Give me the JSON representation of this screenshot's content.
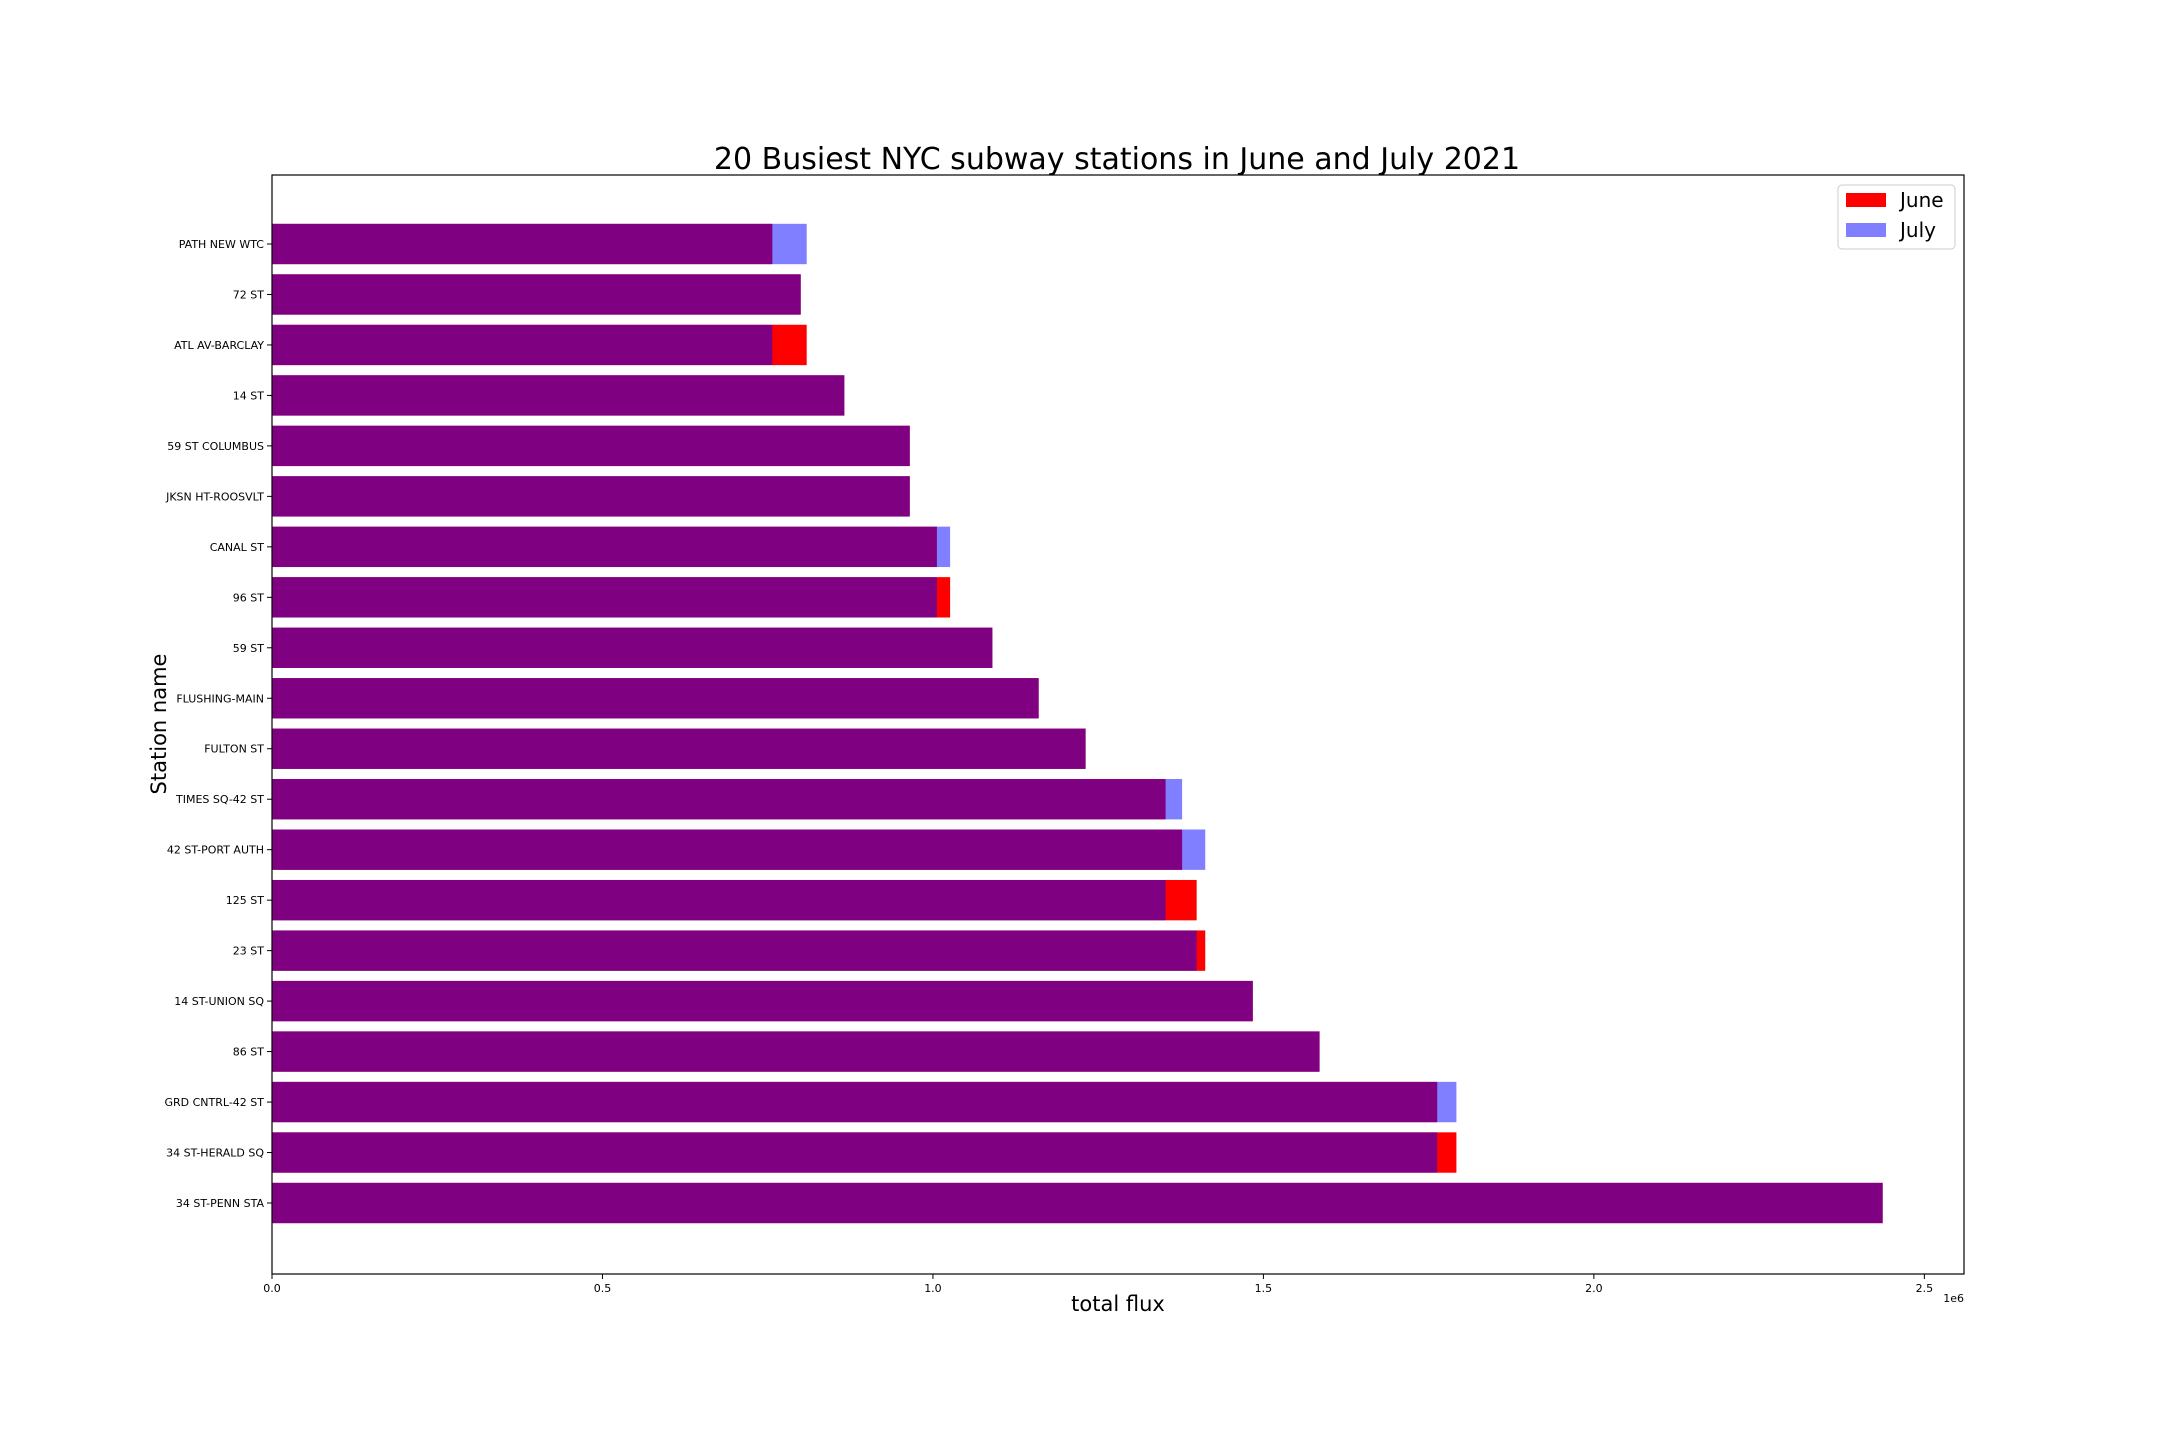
{
  "chart_data": {
    "type": "bar",
    "orientation": "horizontal",
    "title": "20 Busiest NYC subway stations in June and July 2021",
    "xlabel": "total flux",
    "ylabel": "Station name",
    "x_offset_label": "1e6",
    "xlim": [
      0,
      2.56
    ],
    "x_ticks": [
      0.0,
      0.5,
      1.0,
      1.5,
      2.0,
      2.5
    ],
    "x_tick_labels": [
      "0.0",
      "0.5",
      "1.0",
      "1.5",
      "2.0",
      "2.5"
    ],
    "grid": false,
    "legend_position": "top-right",
    "categories": [
      "PATH NEW WTC",
      "72 ST",
      "ATL AV-BARCLAY",
      "14 ST",
      "59 ST COLUMBUS",
      "JKSN HT-ROOSVLT",
      "CANAL ST",
      "96 ST",
      "59 ST",
      "FLUSHING-MAIN",
      "FULTON ST",
      "TIMES SQ-42 ST",
      "42 ST-PORT AUTH",
      "125 ST",
      "23 ST",
      "14 ST-UNION SQ",
      "86 ST",
      "GRD CNTRL-42 ST",
      "34 ST-HERALD SQ",
      "34 ST-PENN STA"
    ],
    "series": [
      {
        "name": "June",
        "color": "#ff0000",
        "values": [
          0.757,
          0.8,
          0.809,
          0.866,
          0.965,
          0.965,
          1.006,
          1.026,
          1.09,
          1.16,
          1.231,
          1.352,
          1.377,
          1.399,
          1.412,
          1.484,
          1.585,
          1.763,
          1.792,
          2.437
        ]
      },
      {
        "name": "July",
        "color": "#0000ff",
        "opacity": 0.5,
        "values": [
          0.809,
          0.8,
          0.757,
          0.866,
          0.965,
          0.965,
          1.026,
          1.006,
          1.09,
          1.16,
          1.231,
          1.377,
          1.412,
          1.352,
          1.399,
          1.484,
          1.585,
          1.792,
          1.763,
          2.437
        ]
      }
    ]
  }
}
